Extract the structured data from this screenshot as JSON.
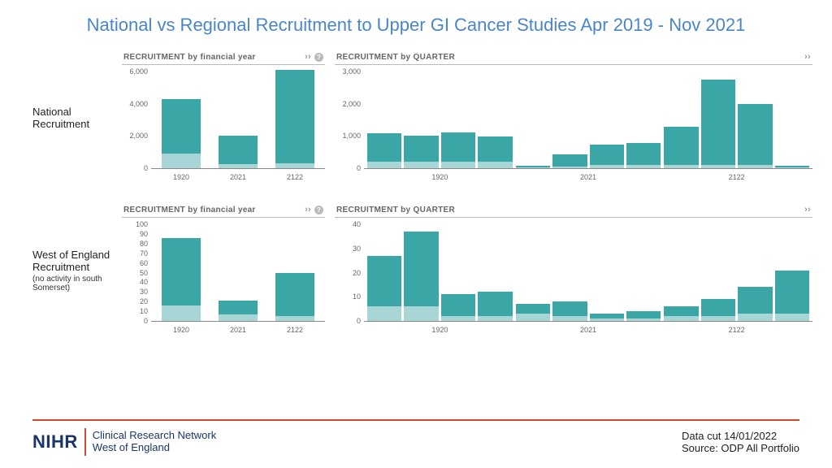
{
  "title": "National vs Regional Recruitment to Upper GI Cancer Studies Apr 2019 - Nov 2021",
  "colors": {
    "title": "#4a86c7",
    "bar_dark": "#3aa6a6",
    "bar_light": "#a8d6d6",
    "axis": "#888888",
    "tick_text": "#666666",
    "rule": "#d0472f",
    "logo_text": "#1a3668"
  },
  "panel_titles": {
    "fy": "RECRUITMENT by financial year",
    "qt": "RECRUITMENT by QUARTER"
  },
  "controls": {
    "expand": "››",
    "help": "?"
  },
  "rows": [
    {
      "label": "National Recruitment",
      "sublabel": "",
      "fy": {
        "ymax": 6000,
        "ytick_step": 2000,
        "groups": [
          {
            "label": "1920",
            "bars": [
              {
                "light": 900,
                "dark": 3400
              }
            ]
          },
          {
            "label": "2021",
            "bars": [
              {
                "light": 260,
                "dark": 1780
              }
            ]
          },
          {
            "label": "2122",
            "bars": [
              {
                "light": 300,
                "dark": 5780
              }
            ]
          }
        ]
      },
      "qt": {
        "ymax": 3000,
        "ytick_step": 1000,
        "groups": [
          {
            "label": "1920",
            "bars": [
              {
                "light": 200,
                "dark": 880
              },
              {
                "light": 190,
                "dark": 830
              },
              {
                "light": 210,
                "dark": 900
              },
              {
                "light": 200,
                "dark": 780
              }
            ]
          },
          {
            "label": "2021",
            "bars": [
              {
                "light": 30,
                "dark": 50
              },
              {
                "light": 60,
                "dark": 360
              },
              {
                "light": 90,
                "dark": 650
              },
              {
                "light": 90,
                "dark": 700
              }
            ]
          },
          {
            "label": "2122",
            "bars": [
              {
                "light": 100,
                "dark": 1190
              },
              {
                "light": 110,
                "dark": 2640
              },
              {
                "light": 110,
                "dark": 1870
              },
              {
                "light": 20,
                "dark": 60
              }
            ]
          }
        ]
      }
    },
    {
      "label": "West of England Recruitment",
      "sublabel": "(no activity in south Somerset)",
      "fy": {
        "ymax": 100,
        "ytick_step": 10,
        "groups": [
          {
            "label": "1920",
            "bars": [
              {
                "light": 16,
                "dark": 70
              }
            ]
          },
          {
            "label": "2021",
            "bars": [
              {
                "light": 7,
                "dark": 14
              }
            ]
          },
          {
            "label": "2122",
            "bars": [
              {
                "light": 5,
                "dark": 45
              }
            ]
          }
        ]
      },
      "qt": {
        "ymax": 40,
        "ytick_step": 10,
        "groups": [
          {
            "label": "1920",
            "bars": [
              {
                "light": 6,
                "dark": 21
              },
              {
                "light": 6,
                "dark": 31
              },
              {
                "light": 2,
                "dark": 9
              },
              {
                "light": 2,
                "dark": 10
              }
            ]
          },
          {
            "label": "2021",
            "bars": [
              {
                "light": 3,
                "dark": 4
              },
              {
                "light": 2,
                "dark": 6
              },
              {
                "light": 1,
                "dark": 2
              },
              {
                "light": 1,
                "dark": 3
              }
            ]
          },
          {
            "label": "2122",
            "bars": [
              {
                "light": 2,
                "dark": 4
              },
              {
                "light": 2,
                "dark": 7
              },
              {
                "light": 3,
                "dark": 11
              },
              {
                "light": 3,
                "dark": 18
              }
            ]
          }
        ]
      }
    }
  ],
  "footer": {
    "logo_abbr": "NIHR",
    "logo_line1": "Clinical Research Network",
    "logo_line2": "West of England",
    "meta_line1": "Data cut 14/01/2022",
    "meta_line2": "Source: ODP All Portfolio"
  }
}
